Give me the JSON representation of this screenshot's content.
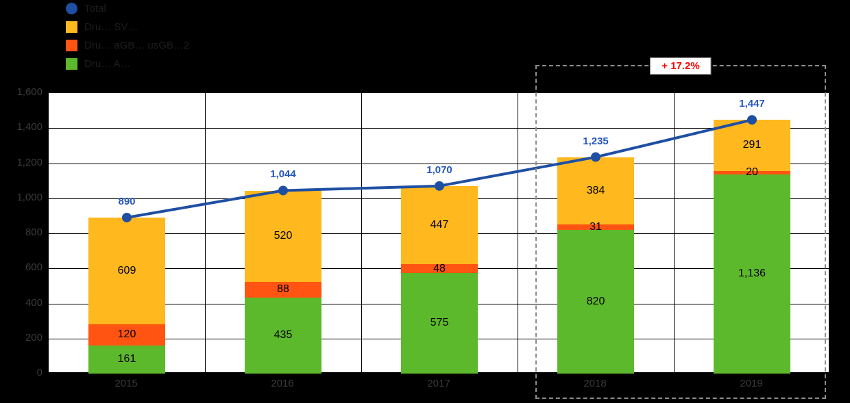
{
  "chart_data": {
    "type": "bar",
    "subtype": "stacked-bars-with-total-line",
    "title": "",
    "categories": [
      "2015",
      "2016",
      "2017",
      "2018",
      "2019"
    ],
    "series": [
      {
        "name": "Dru… A…",
        "color": "#5DB92C",
        "values": [
          161,
          435,
          575,
          820,
          1136
        ],
        "labels": [
          "161",
          "435",
          "575",
          "820",
          "1,136"
        ]
      },
      {
        "name": "Dru… aGB… usGB…2",
        "color": "#FF5412",
        "values": [
          120,
          88,
          48,
          31,
          20
        ],
        "labels": [
          "120",
          "88",
          "48",
          "31",
          "20"
        ]
      },
      {
        "name": "Dru… SV…",
        "color": "#FFB81E",
        "values": [
          609,
          520,
          447,
          384,
          291
        ],
        "labels": [
          "609",
          "520",
          "447",
          "384",
          "291"
        ]
      }
    ],
    "line": {
      "name": "Total",
      "color": "#1F4FA3",
      "label_color": "#2456C0",
      "values": [
        890,
        1044,
        1070,
        1235,
        1447
      ],
      "labels": [
        "890",
        "1,044",
        "1,070",
        "1,235",
        "1,447"
      ]
    },
    "xlabel": "",
    "ylabel": "",
    "ylim": [
      0,
      1600
    ],
    "yticks": [
      0,
      200,
      400,
      600,
      800,
      1000,
      1200,
      1400,
      1600
    ],
    "ytick_labels": [
      "0",
      "200",
      "400",
      "600",
      "800",
      "1,000",
      "1,200",
      "1,400",
      "1,600"
    ],
    "grid": true,
    "legend_position": "top-left",
    "legend_items": [
      {
        "label": "Total",
        "marker": "circle",
        "color": "#1F4FA3"
      },
      {
        "label": "Dru… SV…",
        "marker": "square",
        "color": "#FFB81E"
      },
      {
        "label": "Dru… aGB… usGB…2",
        "marker": "square",
        "color": "#FF5412"
      },
      {
        "label": "Dru… A…",
        "marker": "square",
        "color": "#5DB92C"
      }
    ],
    "annotation": {
      "text": "+ 17.2%",
      "color": "#FF0000",
      "highlight_categories": [
        "2018",
        "2019"
      ]
    }
  }
}
